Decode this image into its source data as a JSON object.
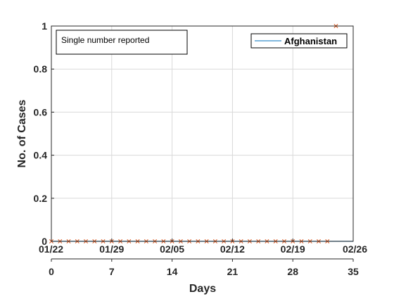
{
  "chart_data": {
    "type": "line",
    "ylabel": "No. of Cases",
    "xlabel": "Days",
    "annotation": "Single number reported",
    "legend": {
      "position": "top-right",
      "entries": [
        "Afghanistan"
      ]
    },
    "grid": true,
    "xlim": [
      0,
      35
    ],
    "ylim": [
      0,
      1
    ],
    "y_ticks": [
      {
        "value": 0,
        "label": "0"
      },
      {
        "value": 0.2,
        "label": "0.2"
      },
      {
        "value": 0.4,
        "label": "0.4"
      },
      {
        "value": 0.6,
        "label": "0.6"
      },
      {
        "value": 0.8,
        "label": "0.8"
      },
      {
        "value": 1,
        "label": "1"
      }
    ],
    "x_ticks_day": [
      {
        "value": 0,
        "label": "0"
      },
      {
        "value": 7,
        "label": "7"
      },
      {
        "value": 14,
        "label": "14"
      },
      {
        "value": 21,
        "label": "21"
      },
      {
        "value": 28,
        "label": "28"
      },
      {
        "value": 35,
        "label": "35"
      }
    ],
    "x_ticks_date": [
      {
        "value": 0,
        "label": "01/22"
      },
      {
        "value": 7,
        "label": "01/29"
      },
      {
        "value": 14,
        "label": "02/05"
      },
      {
        "value": 21,
        "label": "02/12"
      },
      {
        "value": 28,
        "label": "02/19"
      },
      {
        "value": 35,
        "label": "02/26"
      }
    ],
    "series": [
      {
        "name": "Afghanistan",
        "kind": "line",
        "color": "#0072BD",
        "x": [
          0,
          35
        ],
        "y": [
          0,
          0
        ]
      },
      {
        "kind": "markers",
        "marker": "x",
        "color": "#D95319",
        "x": [
          0,
          1,
          2,
          3,
          4,
          5,
          6,
          7,
          8,
          9,
          10,
          11,
          12,
          13,
          14,
          15,
          16,
          17,
          18,
          19,
          20,
          21,
          22,
          23,
          24,
          25,
          26,
          27,
          28,
          29,
          30,
          31,
          32,
          33
        ],
        "y": [
          0,
          0,
          0,
          0,
          0,
          0,
          0,
          0,
          0,
          0,
          0,
          0,
          0,
          0,
          0,
          0,
          0,
          0,
          0,
          0,
          0,
          0,
          0,
          0,
          0,
          0,
          0,
          0,
          0,
          0,
          0,
          0,
          0,
          1
        ]
      }
    ]
  }
}
